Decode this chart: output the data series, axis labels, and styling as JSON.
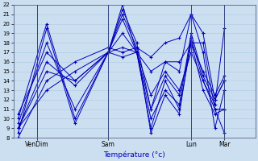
{
  "xlabel": "Température (°c)",
  "ylim": [
    8,
    22
  ],
  "yticks": [
    8,
    9,
    10,
    11,
    12,
    13,
    14,
    15,
    16,
    17,
    18,
    19,
    20,
    21,
    22
  ],
  "xtick_labels": [
    "VenDim",
    "Sam",
    "Lun",
    "Mar"
  ],
  "xtick_positions": [
    8,
    38,
    73,
    87
  ],
  "vline_positions": [
    8,
    38,
    73,
    87
  ],
  "bg_color": "#ccdff0",
  "grid_color": "#aac8e0",
  "line_color": "#0000bb",
  "series": [
    [
      0,
      8.5,
      12,
      19.5,
      24,
      9.5,
      38,
      17.0,
      44,
      21.0,
      50,
      17.5,
      56,
      8.5,
      62,
      12.5,
      68,
      10.5,
      73,
      18.5,
      78,
      14.0,
      83,
      11.5,
      87,
      19.5
    ],
    [
      0,
      9.0,
      12,
      16.0,
      24,
      13.5,
      38,
      17.0,
      44,
      20.5,
      50,
      17.0,
      56,
      10.0,
      62,
      13.0,
      68,
      11.5,
      73,
      19.0,
      78,
      14.5,
      83,
      12.0,
      87,
      14.0
    ],
    [
      0,
      9.0,
      12,
      15.0,
      24,
      14.0,
      38,
      17.0,
      44,
      22.0,
      50,
      17.0,
      56,
      9.0,
      62,
      14.0,
      68,
      11.0,
      73,
      18.0,
      78,
      13.0,
      83,
      10.5,
      87,
      11.0
    ],
    [
      0,
      9.5,
      12,
      18.0,
      24,
      11.0,
      38,
      17.0,
      44,
      19.0,
      50,
      17.0,
      56,
      11.0,
      62,
      14.5,
      68,
      12.5,
      73,
      18.0,
      78,
      15.0,
      83,
      12.5,
      87,
      14.5
    ],
    [
      0,
      10.0,
      12,
      20.0,
      24,
      10.0,
      38,
      17.0,
      44,
      21.5,
      50,
      18.0,
      56,
      11.0,
      62,
      16.0,
      68,
      15.0,
      73,
      21.0,
      78,
      17.0,
      83,
      9.0,
      87,
      13.0
    ],
    [
      0,
      8.0,
      12,
      14.0,
      24,
      16.0,
      38,
      17.5,
      44,
      17.0,
      50,
      17.5,
      56,
      16.5,
      62,
      18.0,
      68,
      18.5,
      73,
      21.0,
      78,
      19.0,
      83,
      12.0,
      87,
      14.0
    ],
    [
      0,
      9.0,
      12,
      13.0,
      24,
      15.0,
      38,
      17.0,
      44,
      16.5,
      50,
      17.0,
      56,
      15.0,
      62,
      16.0,
      68,
      16.0,
      73,
      18.0,
      78,
      18.0,
      83,
      11.0,
      87,
      11.0
    ],
    [
      0,
      10.5,
      12,
      17.0,
      24,
      14.0,
      38,
      17.0,
      44,
      17.5,
      50,
      17.0,
      56,
      12.5,
      62,
      15.0,
      68,
      13.0,
      73,
      17.0,
      78,
      14.0,
      83,
      11.0,
      87,
      8.5
    ]
  ],
  "xlim": [
    -2,
    100
  ],
  "figsize": [
    3.2,
    2.0
  ],
  "dpi": 100
}
